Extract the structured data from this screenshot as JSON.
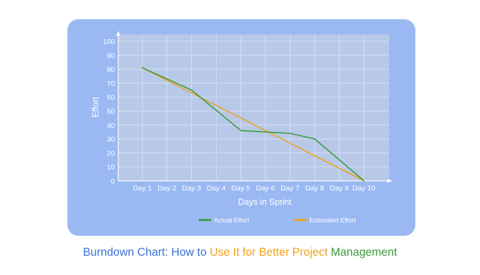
{
  "chart_data": {
    "type": "line",
    "title": "",
    "xlabel": "Days in Sprint",
    "ylabel": "Effort",
    "categories": [
      "Day 1",
      "Day 2",
      "Day 3",
      "Day 4",
      "Day 5",
      "Day 6",
      "Day 7",
      "Day 8",
      "Day 9",
      "Day 10"
    ],
    "ylim": [
      0,
      100
    ],
    "yticks": [
      0,
      10,
      20,
      30,
      40,
      50,
      60,
      70,
      80,
      90,
      100
    ],
    "grid": true,
    "legend_position": "bottom",
    "series": [
      {
        "name": "Actual Effort",
        "color": "#3d9a3a",
        "values": [
          81,
          null,
          65,
          null,
          36,
          null,
          34,
          30,
          null,
          0
        ]
      },
      {
        "name": "Estimated Effort",
        "color": "#f0a21b",
        "values": [
          81,
          72,
          63,
          54,
          45,
          36,
          27,
          18,
          9,
          0
        ]
      }
    ]
  },
  "caption": {
    "parts": [
      {
        "text": "Burndown Chart: How to ",
        "color": "#3b6fd6"
      },
      {
        "text": "Use It for Better Project ",
        "color": "#f0a21b"
      },
      {
        "text": "Management",
        "color": "#3d9a3a"
      }
    ]
  },
  "colors": {
    "card_background": "#9ab9f3",
    "plot_background": "#b8c8e8",
    "grid": "#d6e0f5",
    "axis": "#ffffff"
  }
}
